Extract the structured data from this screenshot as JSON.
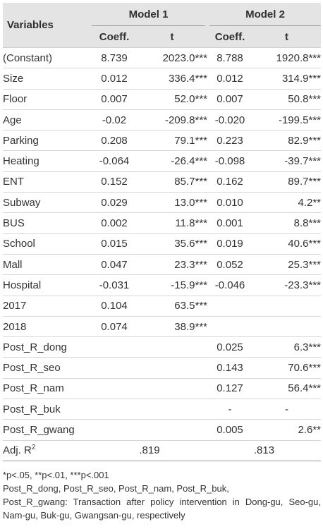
{
  "table": {
    "variables_header": "Variables",
    "models": [
      {
        "label": "Model 1",
        "coef_header": "Coeff.",
        "t_header": "t"
      },
      {
        "label": "Model 2",
        "coef_header": "Coeff.",
        "t_header": "t"
      }
    ],
    "rows": [
      {
        "var": "(Constant)",
        "m1_coef": "8.739",
        "m1_t": "2023.0***",
        "m2_coef": "8.788",
        "m2_t": "1920.8***"
      },
      {
        "var": "Size",
        "m1_coef": "0.012",
        "m1_t": "336.4***",
        "m2_coef": "0.012",
        "m2_t": "314.9***"
      },
      {
        "var": "Floor",
        "m1_coef": "0.007",
        "m1_t": "52.0***",
        "m2_coef": "0.007",
        "m2_t": "50.8***"
      },
      {
        "var": "Age",
        "m1_coef": "-0.02",
        "m1_t": "-209.8***",
        "m2_coef": "-0.020",
        "m2_t": "-199.5***"
      },
      {
        "var": "Parking",
        "m1_coef": "0.208",
        "m1_t": "79.1***",
        "m2_coef": "0.223",
        "m2_t": "82.9***"
      },
      {
        "var": "Heating",
        "m1_coef": "-0.064",
        "m1_t": "-26.4***",
        "m2_coef": "-0.098",
        "m2_t": "-39.7***"
      },
      {
        "var": "ENT",
        "m1_coef": "0.152",
        "m1_t": "85.7***",
        "m2_coef": "0.162",
        "m2_t": "89.7***"
      },
      {
        "var": "Subway",
        "m1_coef": "0.029",
        "m1_t": "13.0***",
        "m2_coef": "0.010",
        "m2_t": "4.2**"
      },
      {
        "var": "BUS",
        "m1_coef": "0.002",
        "m1_t": "11.8***",
        "m2_coef": "0.001",
        "m2_t": "8.8***"
      },
      {
        "var": "School",
        "m1_coef": "0.015",
        "m1_t": "35.6***",
        "m2_coef": "0.019",
        "m2_t": "40.6***"
      },
      {
        "var": "Mall",
        "m1_coef": "0.047",
        "m1_t": "23.3***",
        "m2_coef": "0.052",
        "m2_t": "25.3***"
      },
      {
        "var": "Hospital",
        "m1_coef": "-0.031",
        "m1_t": "-15.9***",
        "m2_coef": "-0.046",
        "m2_t": "-23.3***"
      },
      {
        "var": "2017",
        "m1_coef": "0.104",
        "m1_t": "63.5***",
        "m2_coef": "",
        "m2_t": ""
      },
      {
        "var": "2018",
        "m1_coef": "0.074",
        "m1_t": "38.9***",
        "m2_coef": "",
        "m2_t": ""
      },
      {
        "var": "Post_R_dong",
        "m1_coef": "",
        "m1_t": "",
        "m2_coef": "0.025",
        "m2_t": "6.3***"
      },
      {
        "var": "Post_R_seo",
        "m1_coef": "",
        "m1_t": "",
        "m2_coef": "0.143",
        "m2_t": "70.6***"
      },
      {
        "var": "Post_R_nam",
        "m1_coef": "",
        "m1_t": "",
        "m2_coef": "0.127",
        "m2_t": "56.4***"
      },
      {
        "var": "Post_R_buk",
        "m1_coef": "",
        "m1_t": "",
        "m2_coef": "-",
        "m2_t": "-"
      },
      {
        "var": "Post_R_gwang",
        "m1_coef": "",
        "m1_t": "",
        "m2_coef": "0.005",
        "m2_t": "2.6**"
      }
    ],
    "adj_r2": {
      "label": "Adj. R",
      "superscript": "2",
      "model1": ".819",
      "model2": ".813"
    }
  },
  "notes": {
    "significance": "*p<.05, **p<.01, ***p<.001",
    "line2": "Post_R_dong, Post_R_seo, Post_R_nam, Post_R_buk,",
    "line3": "Post_R_gwang: Transaction after policy intervention in Dong-gu, Seo-gu,",
    "line4": "Nam-gu, Buk-gu, Gwangsan-gu, respectively"
  },
  "colors": {
    "header_background": "#e4e4e4",
    "text": "#333333",
    "rule": "#d6d6d6"
  }
}
